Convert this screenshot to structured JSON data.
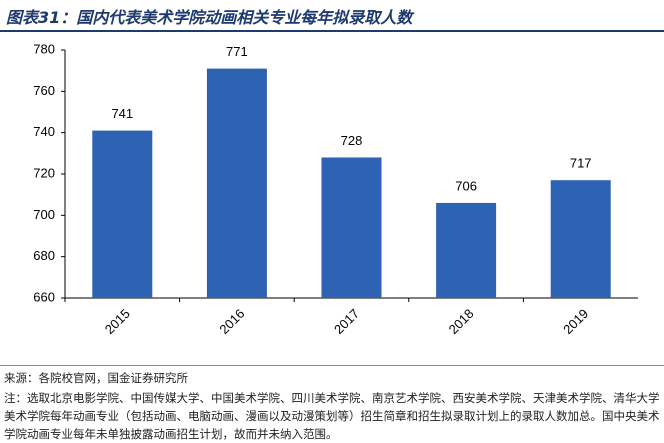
{
  "chart_data": {
    "type": "bar",
    "title": "图表31：国内代表美术学院动画相关专业每年拟录取人数",
    "categories": [
      "2015",
      "2016",
      "2017",
      "2018",
      "2019"
    ],
    "values": [
      741,
      771,
      728,
      706,
      717
    ],
    "color": "#2e62b2",
    "ylim": [
      660,
      780
    ],
    "yticks": [
      660,
      680,
      700,
      720,
      740,
      760,
      780
    ],
    "source": "来源：各院校官网，国金证券研究所",
    "note": "注：选取北京电影学院、中国传媒大学、中国美术学院、四川美术学院、南京艺术学院、西安美术学院、天津美术学院、清华大学美术学院每年动画专业（包括动画、电脑动画、漫画以及动漫策划等）招生简章和招生拟录取计划上的录取人数加总。国中央美术学院动画专业每年未单独披露动画招生计划，故而并未纳入范围。"
  }
}
